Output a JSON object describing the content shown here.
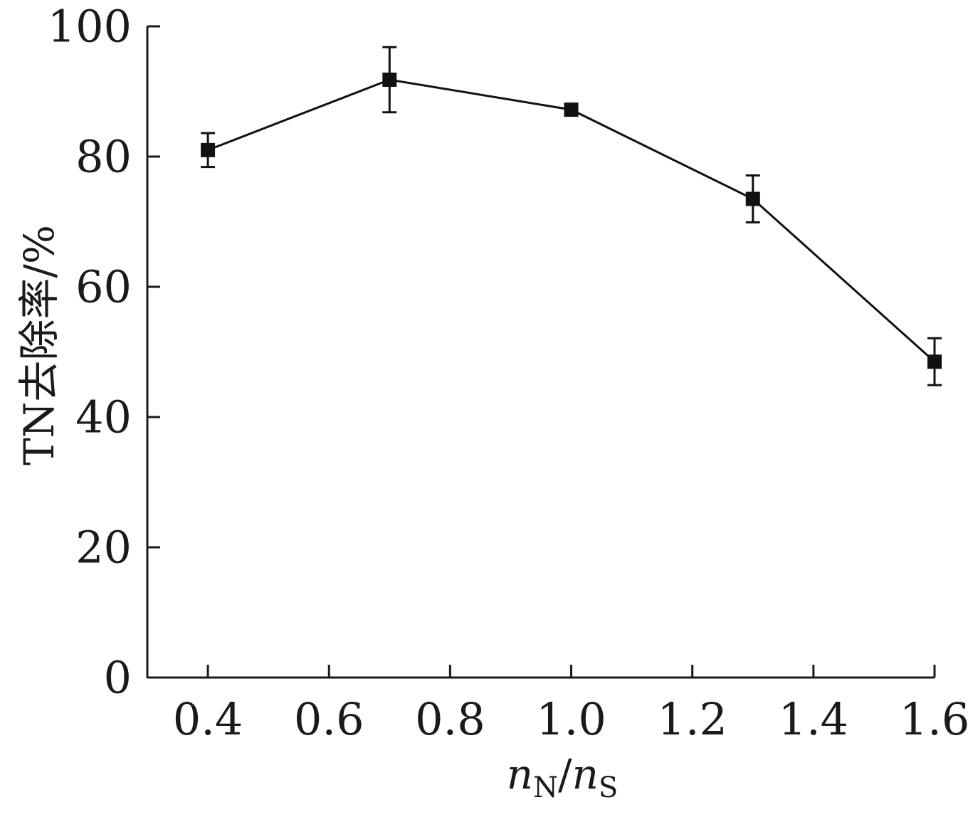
{
  "chart_data": {
    "type": "line",
    "title": "",
    "xlabel": {
      "base": "n",
      "sub_num": "N",
      "slash": "/",
      "sub_den": "S"
    },
    "ylabel": "TN去除率/%",
    "xlim": [
      0.3,
      1.6
    ],
    "ylim": [
      0,
      100
    ],
    "xticks": [
      0.4,
      0.6,
      0.8,
      1.0,
      1.2,
      1.4,
      1.6
    ],
    "xtick_labels": [
      "0.4",
      "0.6",
      "0.8",
      "1.0",
      "1.2",
      "1.4",
      "1.6"
    ],
    "yticks": [
      0,
      20,
      40,
      60,
      80,
      100
    ],
    "ytick_labels": [
      "0",
      "20",
      "40",
      "60",
      "80",
      "100"
    ],
    "grid": false,
    "legend": false,
    "series": [
      {
        "x": [
          0.4,
          0.7,
          1.0,
          1.3,
          1.6
        ],
        "y": [
          81,
          91.8,
          87.2,
          73.5,
          48.5
        ],
        "error": [
          2.6,
          5.0,
          0.9,
          3.6,
          3.6
        ],
        "marker": "square",
        "color": "#111111"
      }
    ]
  }
}
